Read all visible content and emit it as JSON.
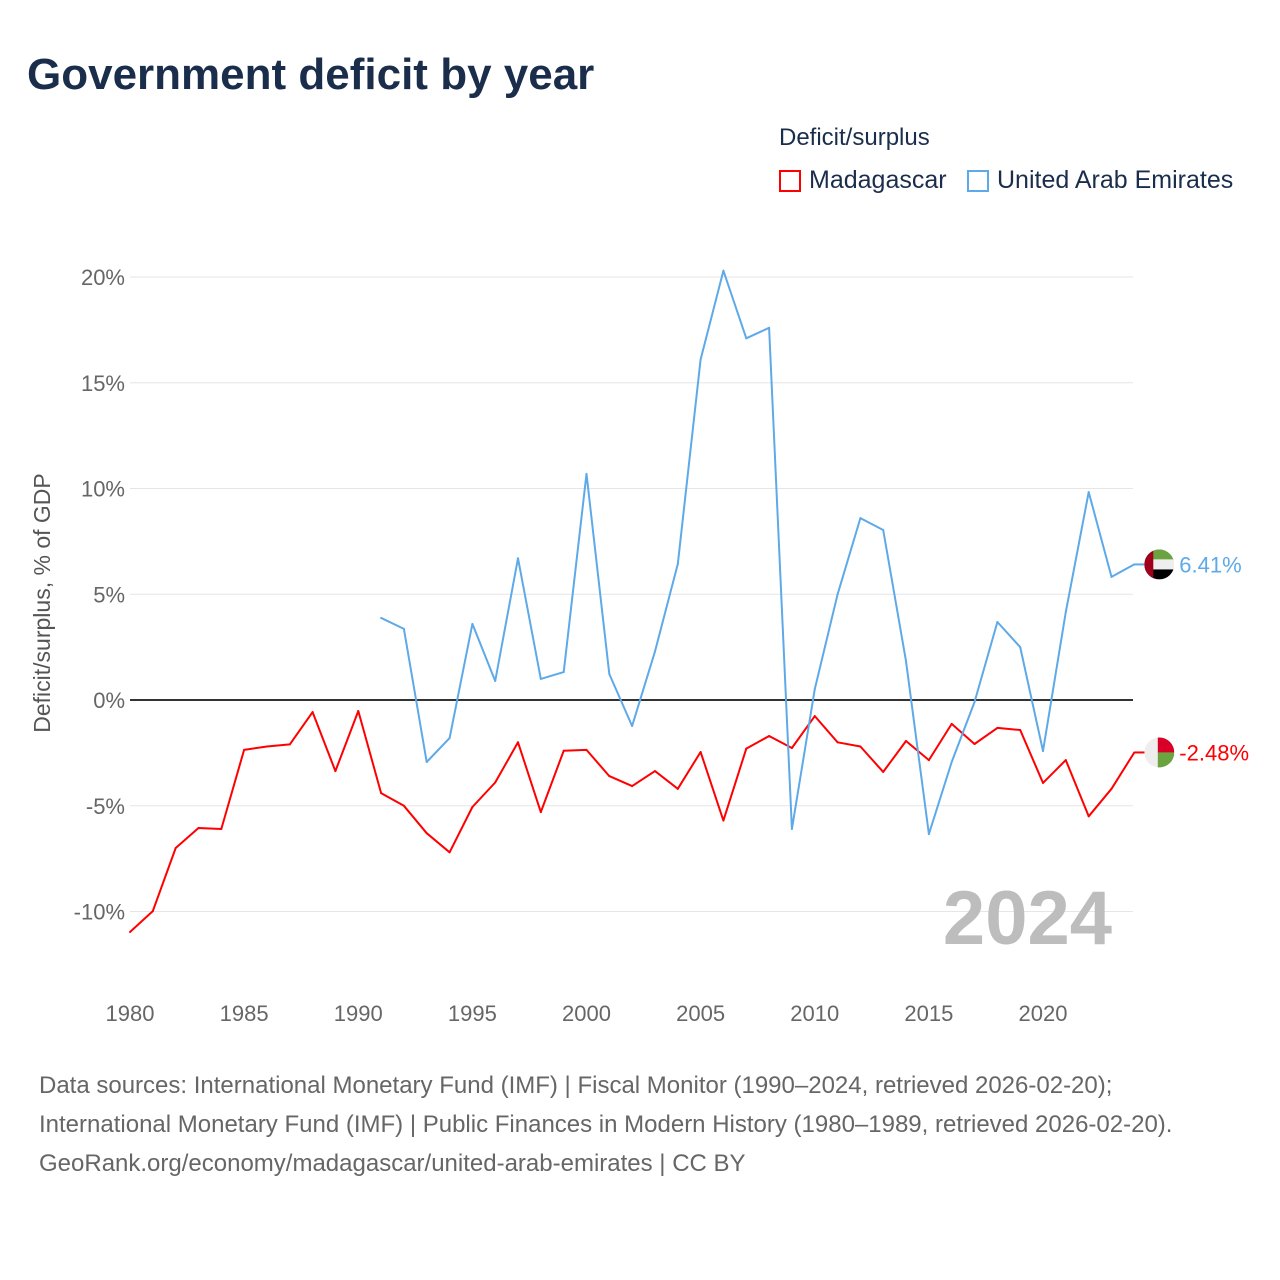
{
  "title": "Government deficit by year",
  "legend": {
    "title": "Deficit/surplus",
    "items": [
      {
        "name": "Madagascar",
        "color": "#ff0000"
      },
      {
        "name": "United Arab Emirates",
        "color": "#5ea9e8"
      }
    ]
  },
  "year_watermark": "2024",
  "footer": {
    "sources": "Data sources: International Monetary Fund (IMF) | Fiscal Monitor (1990–2024, retrieved 2026-02-20); International Monetary Fund (IMF) | Public Finances in Modern History (1980–1989, retrieved 2026-02-20).",
    "credit": "GeoRank.org/economy/madagascar/united-arab-emirates | CC BY"
  },
  "chart_data": {
    "type": "line",
    "title": "Government deficit by year",
    "xlabel": "",
    "ylabel": "Deficit/surplus, % of GDP",
    "xlim": [
      1980,
      2024
    ],
    "ylim": [
      -12,
      21
    ],
    "x_ticks": [
      "1980",
      "1985",
      "1990",
      "1995",
      "2000",
      "2005",
      "2010",
      "2015",
      "2020"
    ],
    "y_ticks": [
      {
        "v": 20,
        "l": "20%"
      },
      {
        "v": 15,
        "l": "15%"
      },
      {
        "v": 10,
        "l": "10%"
      },
      {
        "v": 5,
        "l": "5%"
      },
      {
        "v": 0,
        "l": "0%"
      },
      {
        "v": -5,
        "l": "-5%"
      },
      {
        "v": -10,
        "l": "-10%"
      }
    ],
    "legend_position": "top-right",
    "series": [
      {
        "name": "Madagascar",
        "color": "#ff0000",
        "end_label": "-2.48%",
        "start_year": 1980,
        "values": [
          -10.97,
          -9.98,
          -7.0,
          -6.05,
          -6.1,
          -2.36,
          -2.2,
          -2.1,
          -0.57,
          -3.36,
          -0.52,
          -4.4,
          -5.0,
          -6.3,
          -7.2,
          -5.06,
          -3.9,
          -2.0,
          -5.3,
          -2.4,
          -2.36,
          -3.6,
          -4.07,
          -3.36,
          -4.2,
          -2.46,
          -5.7,
          -2.3,
          -1.7,
          -2.27,
          -0.76,
          -2.0,
          -2.2,
          -3.4,
          -1.94,
          -2.84,
          -1.13,
          -2.08,
          -1.32,
          -1.42,
          -3.92,
          -2.84,
          -5.5,
          -4.2,
          -2.48
        ]
      },
      {
        "name": "United Arab Emirates",
        "color": "#5ea9e8",
        "end_label": "6.41%",
        "start_year": 1991,
        "values": [
          3.88,
          3.36,
          -2.93,
          -1.8,
          3.6,
          0.9,
          6.7,
          1.0,
          1.32,
          10.69,
          1.23,
          -1.23,
          2.3,
          6.43,
          16.1,
          20.3,
          17.1,
          17.6,
          -6.1,
          0.52,
          5.0,
          8.6,
          8.04,
          1.84,
          -6.34,
          -2.93,
          -0.1,
          3.69,
          2.5,
          -2.41,
          4.16,
          9.83,
          5.82,
          6.41
        ]
      }
    ]
  }
}
